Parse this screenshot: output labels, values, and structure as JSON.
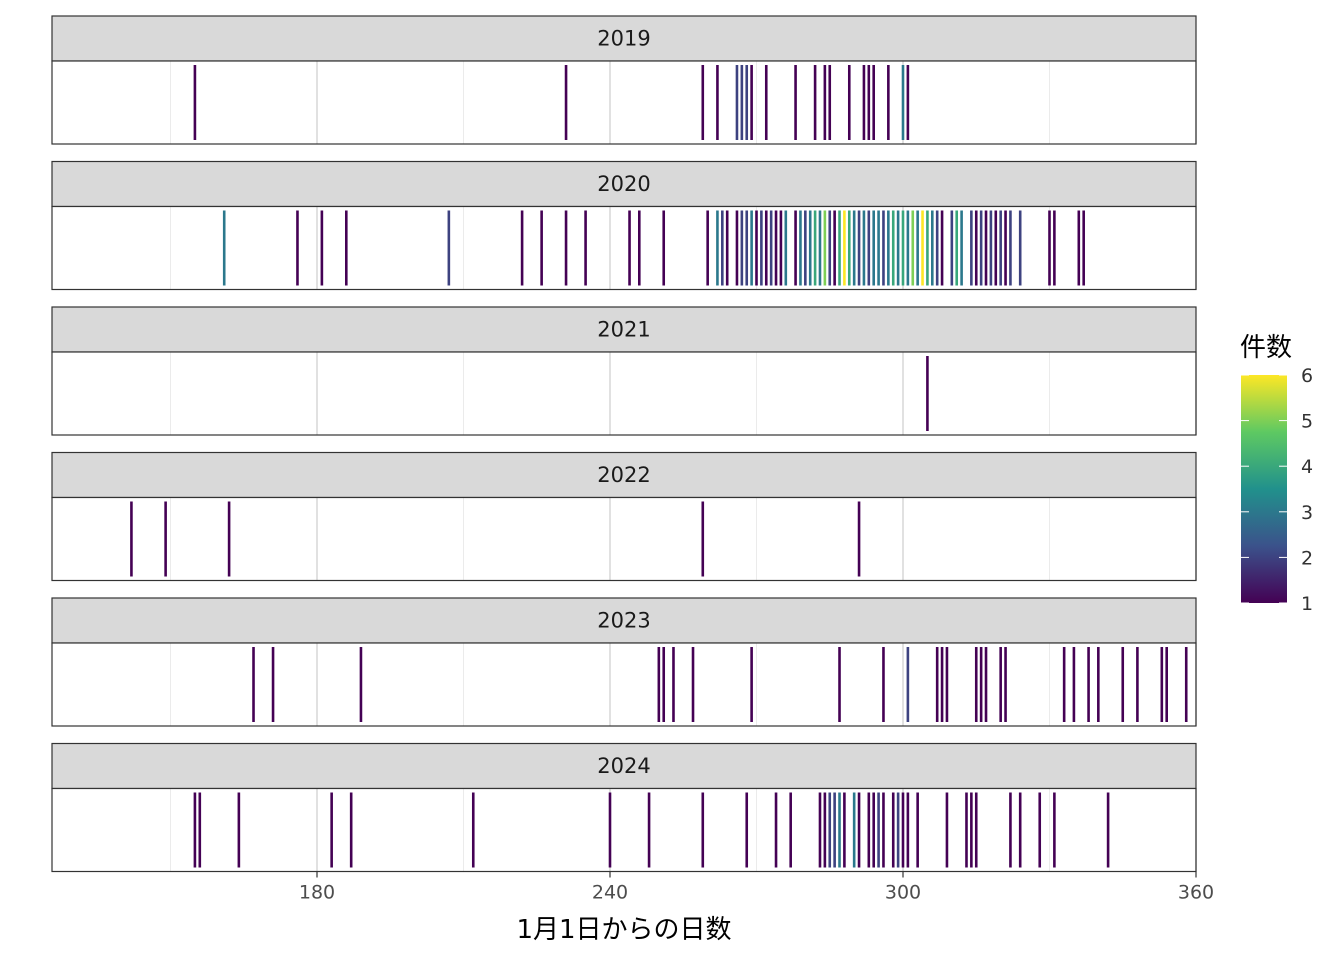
{
  "chart_data": {
    "type": "barcode",
    "xlabel": "1月1日からの日数",
    "x_ticks": [
      180,
      240,
      300,
      360
    ],
    "xlim": [
      131.6,
      366.4
    ],
    "legend": {
      "title": "件数",
      "position": "right",
      "min": 1,
      "max": 6,
      "ticks": [
        1,
        2,
        3,
        4,
        5,
        6
      ],
      "palette": [
        "#440154",
        "#3b528b",
        "#21918c",
        "#5ec962",
        "#fde725"
      ]
    },
    "panels": [
      {
        "label": "2019",
        "events": [
          {
            "day": 155,
            "count": 1
          },
          {
            "day": 231,
            "count": 1
          },
          {
            "day": 259,
            "count": 1
          },
          {
            "day": 262,
            "count": 1
          },
          {
            "day": 266,
            "count": 2
          },
          {
            "day": 267,
            "count": 2
          },
          {
            "day": 268,
            "count": 2
          },
          {
            "day": 269,
            "count": 1
          },
          {
            "day": 272,
            "count": 1
          },
          {
            "day": 278,
            "count": 1
          },
          {
            "day": 282,
            "count": 1
          },
          {
            "day": 284,
            "count": 1
          },
          {
            "day": 285,
            "count": 1
          },
          {
            "day": 289,
            "count": 1
          },
          {
            "day": 292,
            "count": 1
          },
          {
            "day": 293,
            "count": 1
          },
          {
            "day": 294,
            "count": 1
          },
          {
            "day": 297,
            "count": 1
          },
          {
            "day": 300,
            "count": 3
          },
          {
            "day": 301,
            "count": 1
          }
        ]
      },
      {
        "label": "2020",
        "events": [
          {
            "day": 161,
            "count": 3
          },
          {
            "day": 176,
            "count": 1
          },
          {
            "day": 181,
            "count": 1
          },
          {
            "day": 186,
            "count": 1
          },
          {
            "day": 207,
            "count": 2
          },
          {
            "day": 222,
            "count": 1
          },
          {
            "day": 226,
            "count": 1
          },
          {
            "day": 231,
            "count": 1
          },
          {
            "day": 235,
            "count": 1
          },
          {
            "day": 244,
            "count": 1
          },
          {
            "day": 246,
            "count": 1
          },
          {
            "day": 251,
            "count": 1
          },
          {
            "day": 260,
            "count": 1
          },
          {
            "day": 262,
            "count": 3
          },
          {
            "day": 263,
            "count": 2
          },
          {
            "day": 264,
            "count": 1
          },
          {
            "day": 266,
            "count": 1
          },
          {
            "day": 267,
            "count": 2
          },
          {
            "day": 268,
            "count": 2
          },
          {
            "day": 269,
            "count": 3
          },
          {
            "day": 270,
            "count": 1
          },
          {
            "day": 271,
            "count": 2
          },
          {
            "day": 272,
            "count": 1
          },
          {
            "day": 273,
            "count": 2
          },
          {
            "day": 274,
            "count": 1
          },
          {
            "day": 275,
            "count": 1
          },
          {
            "day": 276,
            "count": 3
          },
          {
            "day": 278,
            "count": 1
          },
          {
            "day": 279,
            "count": 3
          },
          {
            "day": 280,
            "count": 2
          },
          {
            "day": 281,
            "count": 3
          },
          {
            "day": 282,
            "count": 4
          },
          {
            "day": 283,
            "count": 3
          },
          {
            "day": 284,
            "count": 5
          },
          {
            "day": 285,
            "count": 2
          },
          {
            "day": 286,
            "count": 1
          },
          {
            "day": 287,
            "count": 4
          },
          {
            "day": 288,
            "count": 6
          },
          {
            "day": 289,
            "count": 4
          },
          {
            "day": 290,
            "count": 3
          },
          {
            "day": 291,
            "count": 2
          },
          {
            "day": 292,
            "count": 3
          },
          {
            "day": 293,
            "count": 2
          },
          {
            "day": 294,
            "count": 3
          },
          {
            "day": 295,
            "count": 3
          },
          {
            "day": 296,
            "count": 2
          },
          {
            "day": 297,
            "count": 3
          },
          {
            "day": 298,
            "count": 4
          },
          {
            "day": 299,
            "count": 3
          },
          {
            "day": 300,
            "count": 4
          },
          {
            "day": 301,
            "count": 3
          },
          {
            "day": 302,
            "count": 5
          },
          {
            "day": 303,
            "count": 3
          },
          {
            "day": 304,
            "count": 6
          },
          {
            "day": 305,
            "count": 4
          },
          {
            "day": 306,
            "count": 3
          },
          {
            "day": 307,
            "count": 2
          },
          {
            "day": 308,
            "count": 1
          },
          {
            "day": 310,
            "count": 2
          },
          {
            "day": 311,
            "count": 4
          },
          {
            "day": 312,
            "count": 3
          },
          {
            "day": 314,
            "count": 2
          },
          {
            "day": 315,
            "count": 1
          },
          {
            "day": 316,
            "count": 2
          },
          {
            "day": 317,
            "count": 1
          },
          {
            "day": 318,
            "count": 2
          },
          {
            "day": 319,
            "count": 1
          },
          {
            "day": 320,
            "count": 2
          },
          {
            "day": 321,
            "count": 1
          },
          {
            "day": 322,
            "count": 2
          },
          {
            "day": 324,
            "count": 2
          },
          {
            "day": 330,
            "count": 1
          },
          {
            "day": 331,
            "count": 1
          },
          {
            "day": 336,
            "count": 1
          },
          {
            "day": 337,
            "count": 1
          }
        ]
      },
      {
        "label": "2021",
        "events": [
          {
            "day": 305,
            "count": 1
          }
        ]
      },
      {
        "label": "2022",
        "events": [
          {
            "day": 142,
            "count": 1
          },
          {
            "day": 149,
            "count": 1
          },
          {
            "day": 162,
            "count": 1
          },
          {
            "day": 259,
            "count": 1
          },
          {
            "day": 291,
            "count": 1
          }
        ]
      },
      {
        "label": "2023",
        "events": [
          {
            "day": 167,
            "count": 1
          },
          {
            "day": 171,
            "count": 1
          },
          {
            "day": 189,
            "count": 1
          },
          {
            "day": 250,
            "count": 1
          },
          {
            "day": 251,
            "count": 1
          },
          {
            "day": 253,
            "count": 1
          },
          {
            "day": 257,
            "count": 1
          },
          {
            "day": 269,
            "count": 1
          },
          {
            "day": 287,
            "count": 1
          },
          {
            "day": 296,
            "count": 1
          },
          {
            "day": 301,
            "count": 2
          },
          {
            "day": 307,
            "count": 1
          },
          {
            "day": 308,
            "count": 1
          },
          {
            "day": 309,
            "count": 1
          },
          {
            "day": 315,
            "count": 1
          },
          {
            "day": 316,
            "count": 1
          },
          {
            "day": 317,
            "count": 1
          },
          {
            "day": 320,
            "count": 1
          },
          {
            "day": 321,
            "count": 1
          },
          {
            "day": 333,
            "count": 1
          },
          {
            "day": 335,
            "count": 1
          },
          {
            "day": 338,
            "count": 1
          },
          {
            "day": 340,
            "count": 1
          },
          {
            "day": 345,
            "count": 1
          },
          {
            "day": 348,
            "count": 1
          },
          {
            "day": 353,
            "count": 1
          },
          {
            "day": 354,
            "count": 1
          },
          {
            "day": 358,
            "count": 1
          }
        ]
      },
      {
        "label": "2024",
        "events": [
          {
            "day": 155,
            "count": 1
          },
          {
            "day": 156,
            "count": 1
          },
          {
            "day": 164,
            "count": 1
          },
          {
            "day": 183,
            "count": 1
          },
          {
            "day": 187,
            "count": 1
          },
          {
            "day": 212,
            "count": 1
          },
          {
            "day": 240,
            "count": 1
          },
          {
            "day": 248,
            "count": 1
          },
          {
            "day": 259,
            "count": 1
          },
          {
            "day": 268,
            "count": 1
          },
          {
            "day": 274,
            "count": 1
          },
          {
            "day": 277,
            "count": 1
          },
          {
            "day": 283,
            "count": 1
          },
          {
            "day": 284,
            "count": 1
          },
          {
            "day": 285,
            "count": 2
          },
          {
            "day": 286,
            "count": 2
          },
          {
            "day": 287,
            "count": 3
          },
          {
            "day": 288,
            "count": 1
          },
          {
            "day": 290,
            "count": 3
          },
          {
            "day": 291,
            "count": 1
          },
          {
            "day": 293,
            "count": 1
          },
          {
            "day": 294,
            "count": 1
          },
          {
            "day": 295,
            "count": 2
          },
          {
            "day": 296,
            "count": 1
          },
          {
            "day": 298,
            "count": 1
          },
          {
            "day": 299,
            "count": 2
          },
          {
            "day": 300,
            "count": 1
          },
          {
            "day": 301,
            "count": 1
          },
          {
            "day": 303,
            "count": 1
          },
          {
            "day": 309,
            "count": 1
          },
          {
            "day": 313,
            "count": 1
          },
          {
            "day": 314,
            "count": 1
          },
          {
            "day": 315,
            "count": 1
          },
          {
            "day": 322,
            "count": 1
          },
          {
            "day": 324,
            "count": 1
          },
          {
            "day": 328,
            "count": 1
          },
          {
            "day": 331,
            "count": 1
          },
          {
            "day": 342,
            "count": 1
          }
        ]
      }
    ]
  }
}
